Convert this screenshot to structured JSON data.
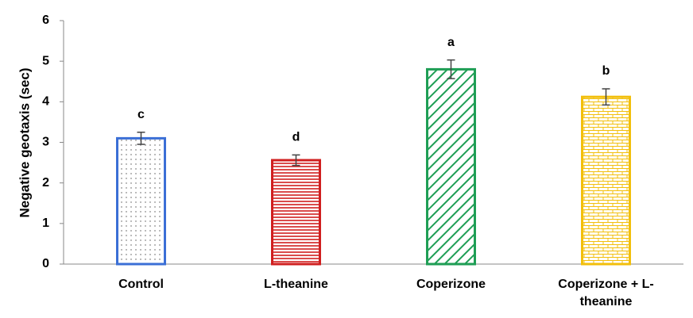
{
  "chart_data": {
    "type": "bar",
    "y_label": "Negative geotaxis (sec)",
    "categories": [
      "Control",
      "L-theanine",
      "Coperizone",
      "Coperizone + L-theanine"
    ],
    "values": [
      3.1,
      2.56,
      4.8,
      4.12
    ],
    "errors": [
      0.15,
      0.13,
      0.23,
      0.2
    ],
    "letters": [
      "c",
      "d",
      "a",
      "b"
    ],
    "colors": [
      "#3b6fd6",
      "#d01f1f",
      "#1f9e55",
      "#f2bf0c"
    ],
    "ylim": [
      0,
      6
    ],
    "yticks": [
      0,
      1,
      2,
      3,
      4,
      5,
      6
    ],
    "grid": false
  }
}
